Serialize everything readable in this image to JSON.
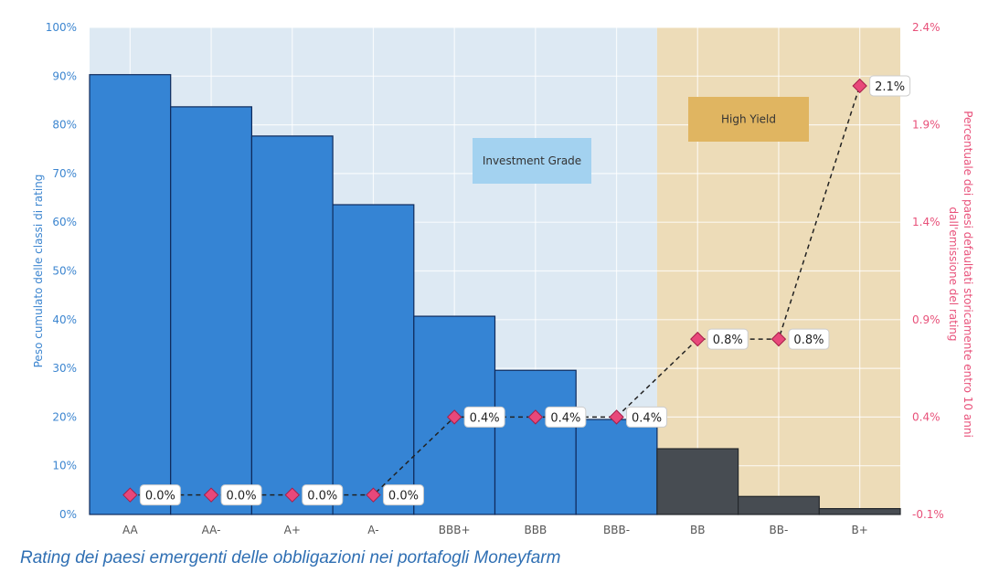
{
  "caption": "Rating dei paesi emergenti delle obbligazioni nei portafogli Moneyfarm",
  "chart_data": {
    "type": "bar",
    "categories": [
      "AA",
      "AA-",
      "A+",
      "A-",
      "BBB+",
      "BBB",
      "BBB-",
      "BB",
      "BB-",
      "B+"
    ],
    "series": [
      {
        "axis": "left",
        "kind": "bar",
        "values": [
          90.3,
          83.7,
          77.7,
          63.6,
          40.7,
          29.6,
          19.5,
          13.5,
          3.7,
          1.2
        ],
        "colors": [
          "#3584d4",
          "#3584d4",
          "#3584d4",
          "#3584d4",
          "#3584d4",
          "#3584d4",
          "#3584d4",
          "#474c52",
          "#474c52",
          "#474c52"
        ]
      },
      {
        "axis": "right",
        "kind": "line",
        "values": [
          0.0,
          0.0,
          0.0,
          0.0,
          0.4,
          0.4,
          0.4,
          0.8,
          0.8,
          2.1
        ],
        "labels": [
          "0.0%",
          "0.0%",
          "0.0%",
          "0.0%",
          "0.4%",
          "0.4%",
          "0.4%",
          "0.8%",
          "0.8%",
          "2.1%"
        ]
      }
    ],
    "ylabel": "Peso cumulato delle classi di rating",
    "ylim": [
      0,
      100
    ],
    "yticks": [
      "0%",
      "10%",
      "20%",
      "30%",
      "40%",
      "50%",
      "60%",
      "70%",
      "80%",
      "90%",
      "100%"
    ],
    "y2label_lines": [
      "Percentuale dei paesi defaultati storicamente entro 10 anni",
      "dall'emissione del rating"
    ],
    "y2lim": [
      -0.1,
      2.4
    ],
    "y2ticks": [
      "-0.1%",
      "0.4%",
      "0.9%",
      "1.4%",
      "1.9%",
      "2.4%"
    ],
    "regions": [
      {
        "label": "Investment Grade",
        "from": 0,
        "to": 7,
        "background": "#dde9f3",
        "box_color": "#a3d2f0"
      },
      {
        "label": "High Yield",
        "from": 7,
        "to": 10,
        "background": "#eddcb8",
        "box_color": "#e0b561"
      }
    ],
    "grid": true,
    "colors": {
      "line": "#222222",
      "marker": "#e8487a",
      "marker_stroke": "#a51f4a",
      "left_axis": "#3d86d0",
      "right_axis": "#e8517a"
    }
  }
}
